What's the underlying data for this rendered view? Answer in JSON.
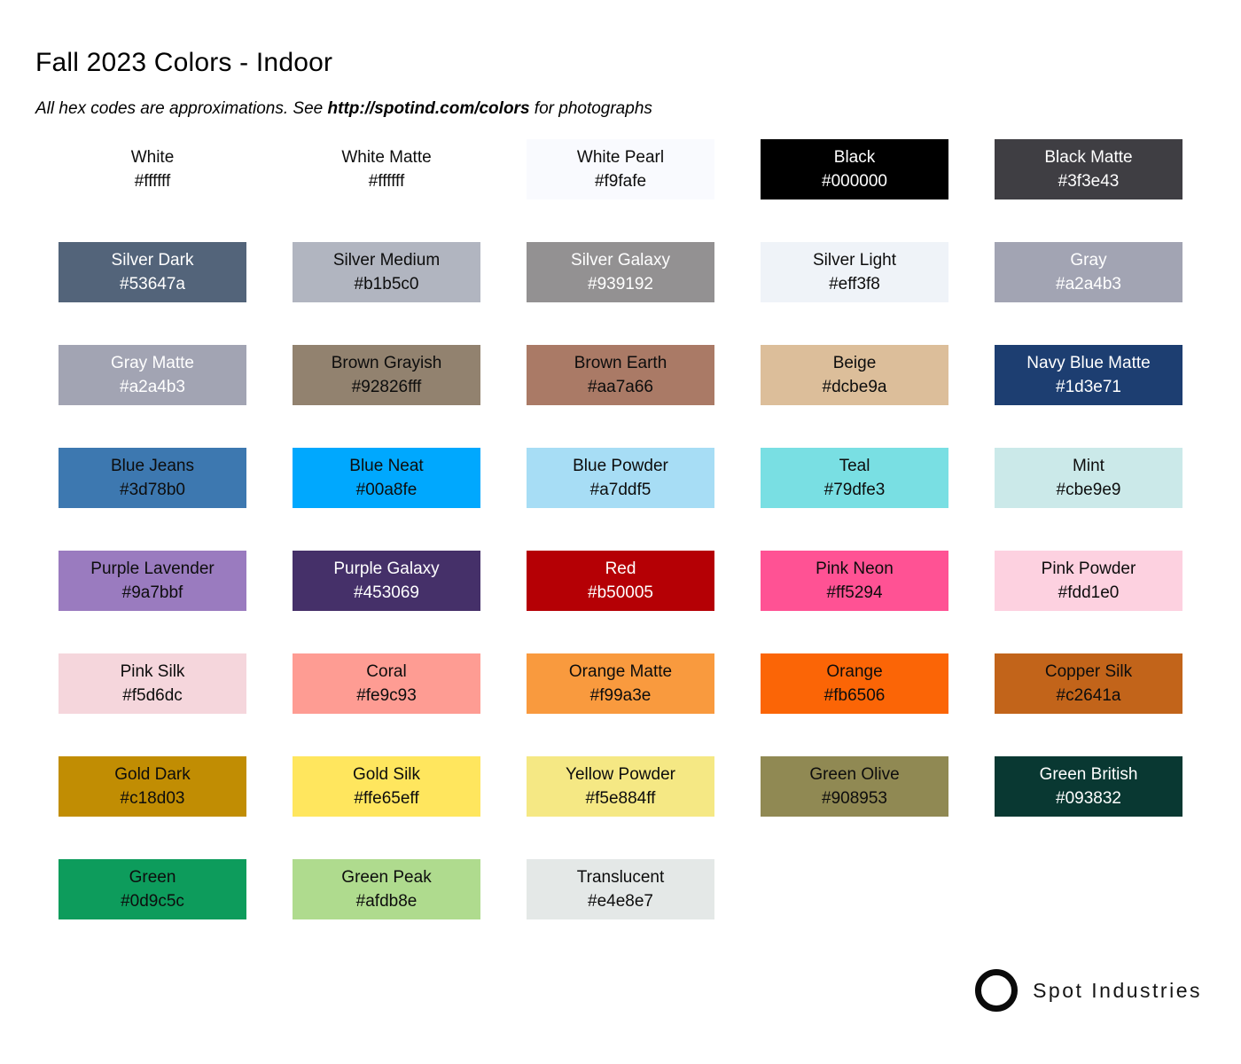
{
  "page": {
    "title": "Fall 2023 Colors - Indoor",
    "subtitle_prefix": "All hex codes are approximations. See ",
    "subtitle_link": "http://spotind.com/colors",
    "subtitle_suffix": " for photographs"
  },
  "colors": {
    "page_background": "#ffffff",
    "dark_text": "#0d0d0d",
    "light_text": "#ffffff",
    "logo_color": "#0b0b0b"
  },
  "swatches": [
    {
      "name": "White",
      "hex": "#ffffff",
      "text_tone": "dark"
    },
    {
      "name": "White Matte",
      "hex": "#ffffff",
      "text_tone": "dark"
    },
    {
      "name": "White Pearl",
      "hex": "#f9fafe",
      "text_tone": "dark"
    },
    {
      "name": "Black",
      "hex": "#000000",
      "text_tone": "light"
    },
    {
      "name": "Black Matte",
      "hex": "#3f3e43",
      "text_tone": "light"
    },
    {
      "name": "Silver Dark",
      "hex": "#53647a",
      "text_tone": "light"
    },
    {
      "name": "Silver Medium",
      "hex": "#b1b5c0",
      "text_tone": "dark"
    },
    {
      "name": "Silver Galaxy",
      "hex": "#939192",
      "text_tone": "light"
    },
    {
      "name": "Silver Light",
      "hex": "#eff3f8",
      "text_tone": "dark"
    },
    {
      "name": "Gray",
      "hex": "#a2a4b3",
      "text_tone": "light"
    },
    {
      "name": "Gray Matte",
      "hex": "#a2a4b3",
      "text_tone": "light"
    },
    {
      "name": "Brown Grayish",
      "hex": "#92826fff",
      "text_tone": "dark"
    },
    {
      "name": "Brown Earth",
      "hex": "#aa7a66",
      "text_tone": "dark"
    },
    {
      "name": "Beige",
      "hex": "#dcbe9a",
      "text_tone": "dark"
    },
    {
      "name": "Navy Blue Matte",
      "hex": "#1d3e71",
      "text_tone": "light"
    },
    {
      "name": "Blue Jeans",
      "hex": "#3d78b0",
      "text_tone": "dark"
    },
    {
      "name": "Blue Neat",
      "hex": "#00a8fe",
      "text_tone": "dark"
    },
    {
      "name": "Blue Powder",
      "hex": "#a7ddf5",
      "text_tone": "dark"
    },
    {
      "name": "Teal",
      "hex": "#79dfe3",
      "text_tone": "dark"
    },
    {
      "name": "Mint",
      "hex": "#cbe9e9",
      "text_tone": "dark"
    },
    {
      "name": "Purple Lavender",
      "hex": "#9a7bbf",
      "text_tone": "dark"
    },
    {
      "name": "Purple Galaxy",
      "hex": "#453069",
      "text_tone": "light"
    },
    {
      "name": "Red",
      "hex": "#b50005",
      "text_tone": "light"
    },
    {
      "name": "Pink Neon",
      "hex": "#ff5294",
      "text_tone": "dark"
    },
    {
      "name": "Pink Powder",
      "hex": "#fdd1e0",
      "text_tone": "dark"
    },
    {
      "name": "Pink Silk",
      "hex": "#f5d6dc",
      "text_tone": "dark"
    },
    {
      "name": "Coral",
      "hex": "#fe9c93",
      "text_tone": "dark"
    },
    {
      "name": "Orange Matte",
      "hex": "#f99a3e",
      "text_tone": "dark"
    },
    {
      "name": "Orange",
      "hex": "#fb6506",
      "text_tone": "dark"
    },
    {
      "name": "Copper Silk",
      "hex": "#c2641a",
      "text_tone": "dark"
    },
    {
      "name": "Gold Dark",
      "hex": "#c18d03",
      "text_tone": "dark"
    },
    {
      "name": "Gold Silk",
      "hex": "#ffe65eff",
      "text_tone": "dark"
    },
    {
      "name": "Yellow Powder",
      "hex": "#f5e884ff",
      "text_tone": "dark"
    },
    {
      "name": "Green Olive",
      "hex": "#908953",
      "text_tone": "dark"
    },
    {
      "name": "Green British",
      "hex": "#093832",
      "text_tone": "light"
    },
    {
      "name": "Green",
      "hex": "#0d9c5c",
      "text_tone": "dark"
    },
    {
      "name": "Green Peak",
      "hex": "#afdb8e",
      "text_tone": "dark"
    },
    {
      "name": "Translucent",
      "hex": "#e4e8e7",
      "text_tone": "dark"
    }
  ],
  "footer": {
    "brand": "Spot Industries",
    "logo_icon": "circle-outline-icon"
  }
}
